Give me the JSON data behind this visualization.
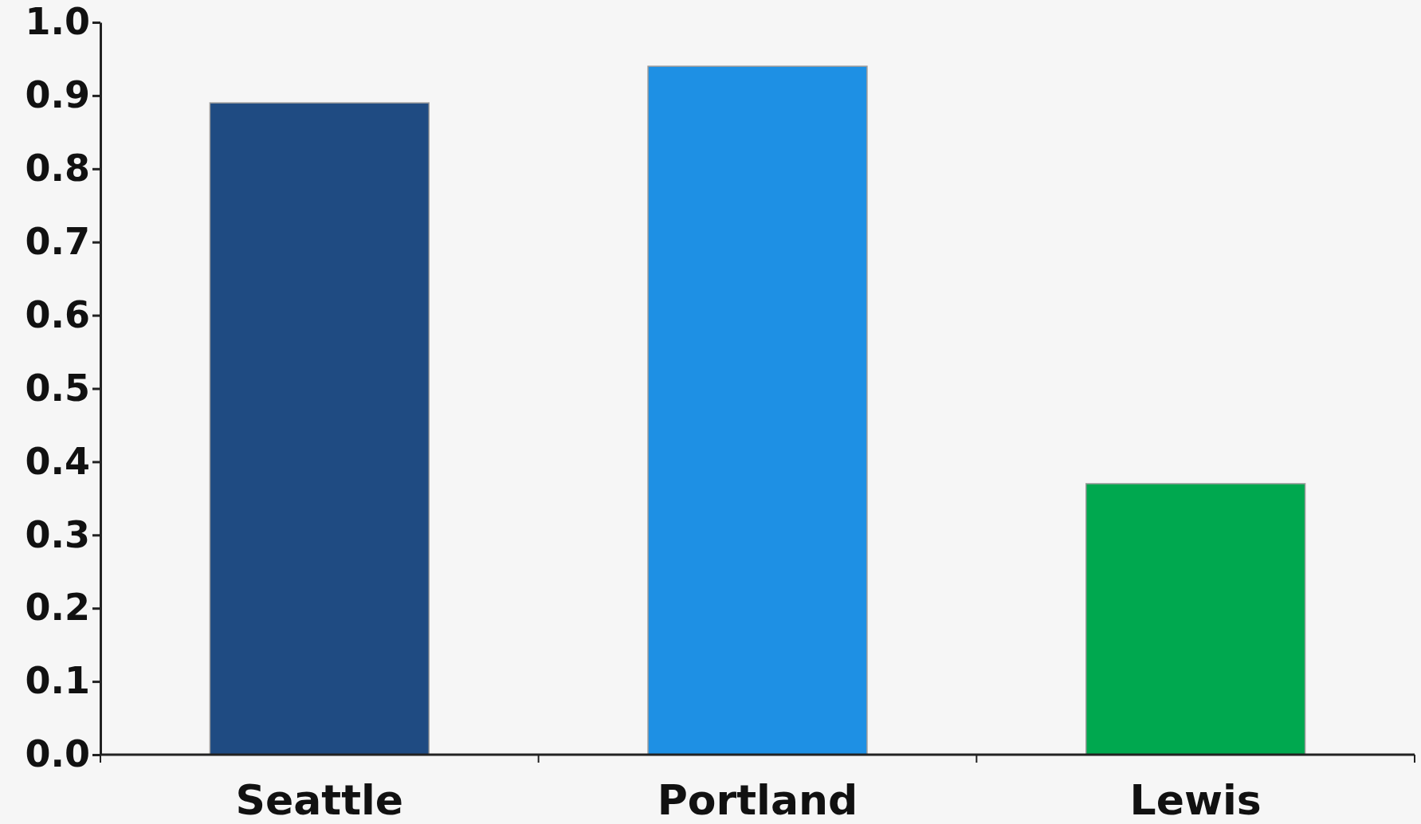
{
  "chart_data": {
    "type": "bar",
    "categories": [
      "Seattle",
      "Portland",
      "Lewis"
    ],
    "values": [
      0.89,
      0.94,
      0.37
    ],
    "colors": [
      "#1f4b82",
      "#1e90e4",
      "#00a84f"
    ],
    "ylim": [
      0,
      1
    ],
    "yticks": [
      {
        "value": 0,
        "label": "0.0"
      },
      {
        "value": 0.1,
        "label": "0.1"
      },
      {
        "value": 0.2,
        "label": "0.2"
      },
      {
        "value": 0.3,
        "label": "0.3"
      },
      {
        "value": 0.4,
        "label": "0.4"
      },
      {
        "value": 0.5,
        "label": "0.5"
      },
      {
        "value": 0.6,
        "label": "0.6"
      },
      {
        "value": 0.7,
        "label": "0.7"
      },
      {
        "value": 0.8,
        "label": "0.8"
      },
      {
        "value": 0.9,
        "label": "0.9"
      },
      {
        "value": 1,
        "label": "1.0"
      }
    ],
    "grid": false
  }
}
